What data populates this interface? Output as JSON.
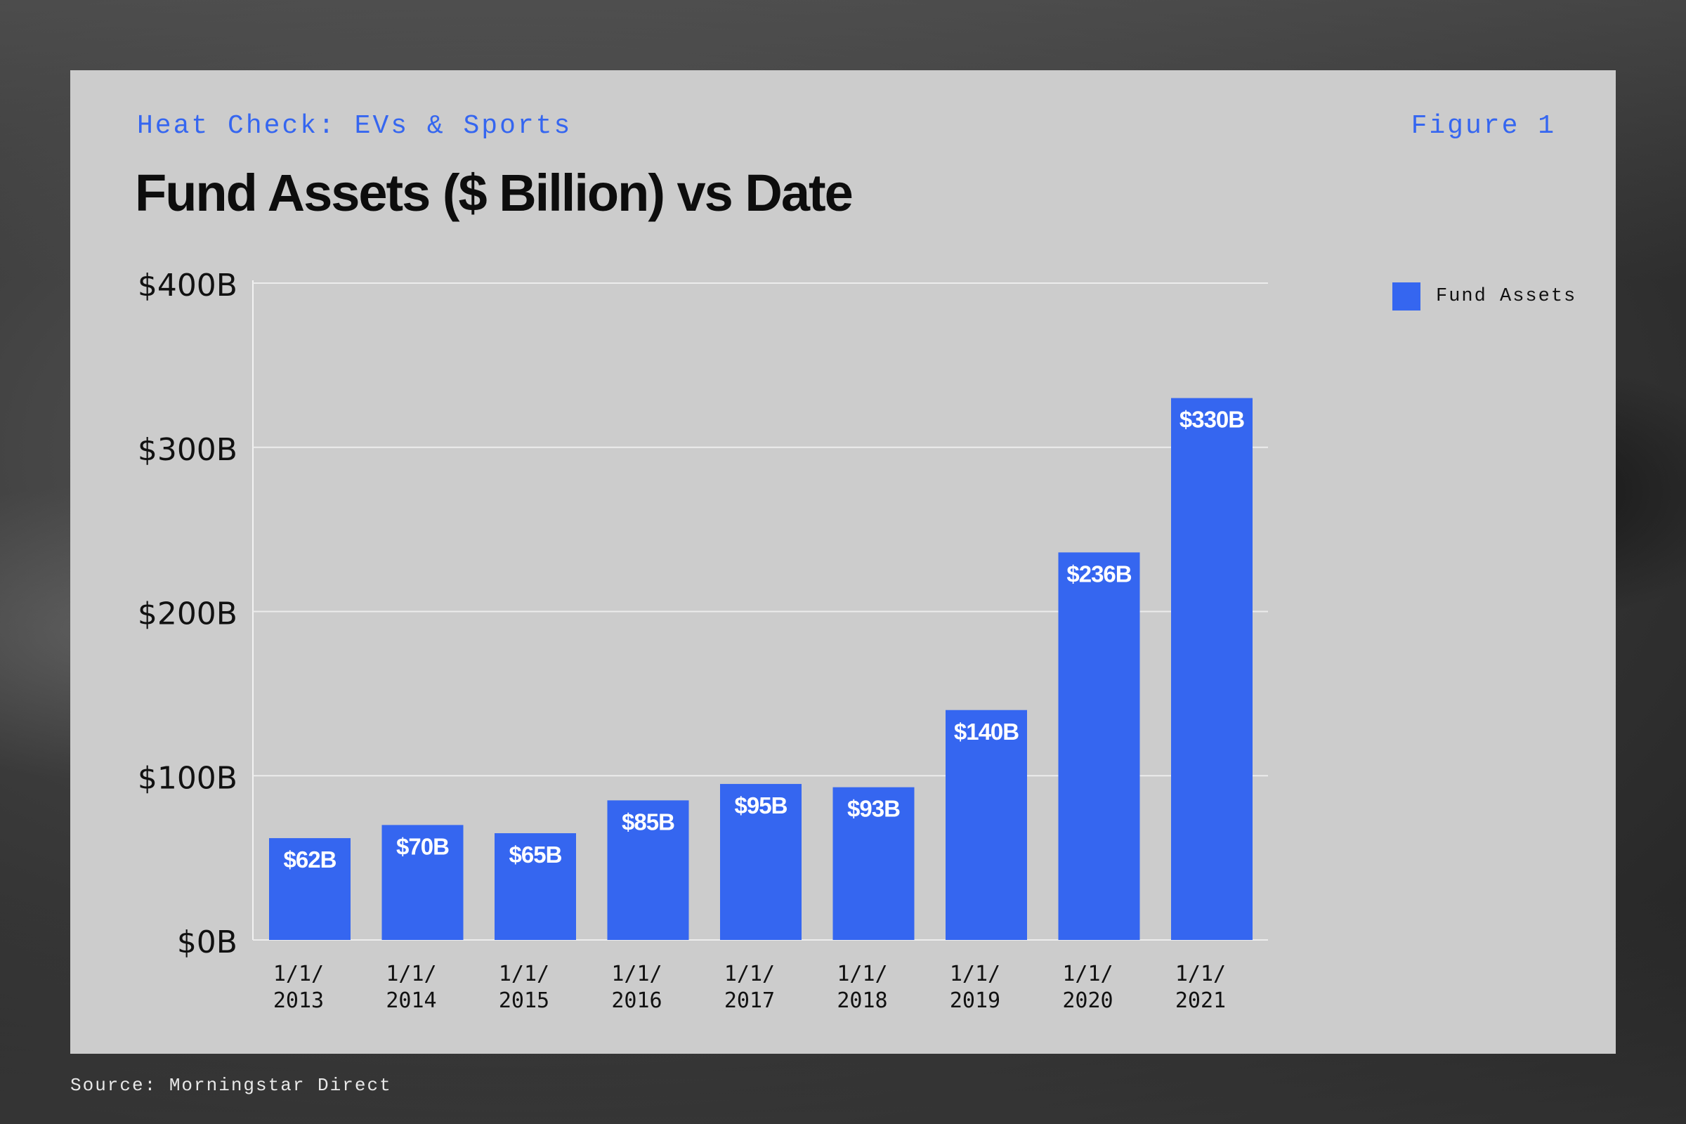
{
  "header": {
    "kicker": "Heat Check: EVs & Sports",
    "figure_label": "Figure 1",
    "title": "Fund Assets ($ Billion) vs Date"
  },
  "source": "Source: Morningstar Direct",
  "colors": {
    "bar": "#3566f0",
    "kicker": "#3566f0",
    "panel": "#cccccc"
  },
  "chart_data": {
    "type": "bar",
    "title": "Fund Assets ($ Billion) vs Date",
    "xlabel": "",
    "ylabel": "",
    "categories": [
      [
        "1/1/",
        "2013"
      ],
      [
        "1/1/",
        "2014"
      ],
      [
        "1/1/",
        "2015"
      ],
      [
        "1/1/",
        "2016"
      ],
      [
        "1/1/",
        "2017"
      ],
      [
        "1/1/",
        "2018"
      ],
      [
        "1/1/",
        "2019"
      ],
      [
        "1/1/",
        "2020"
      ],
      [
        "1/1/",
        "2021"
      ]
    ],
    "series": [
      {
        "name": "Fund Assets",
        "values": [
          62,
          70,
          65,
          85,
          95,
          93,
          140,
          236,
          330
        ]
      }
    ],
    "data_labels": [
      "$62B",
      "$70B",
      "$65B",
      "$85B",
      "$95B",
      "$93B",
      "$140B",
      "$236B",
      "$330B"
    ],
    "y_ticks": [
      {
        "value": 0,
        "label": "$0B"
      },
      {
        "value": 100,
        "label": "$100B"
      },
      {
        "value": 200,
        "label": "$200B"
      },
      {
        "value": 300,
        "label": "$300B"
      },
      {
        "value": 400,
        "label": "$400B"
      }
    ],
    "ylim": [
      0,
      400
    ],
    "grid": true,
    "legend": {
      "position": "right",
      "entries": [
        "Fund Assets"
      ]
    }
  }
}
